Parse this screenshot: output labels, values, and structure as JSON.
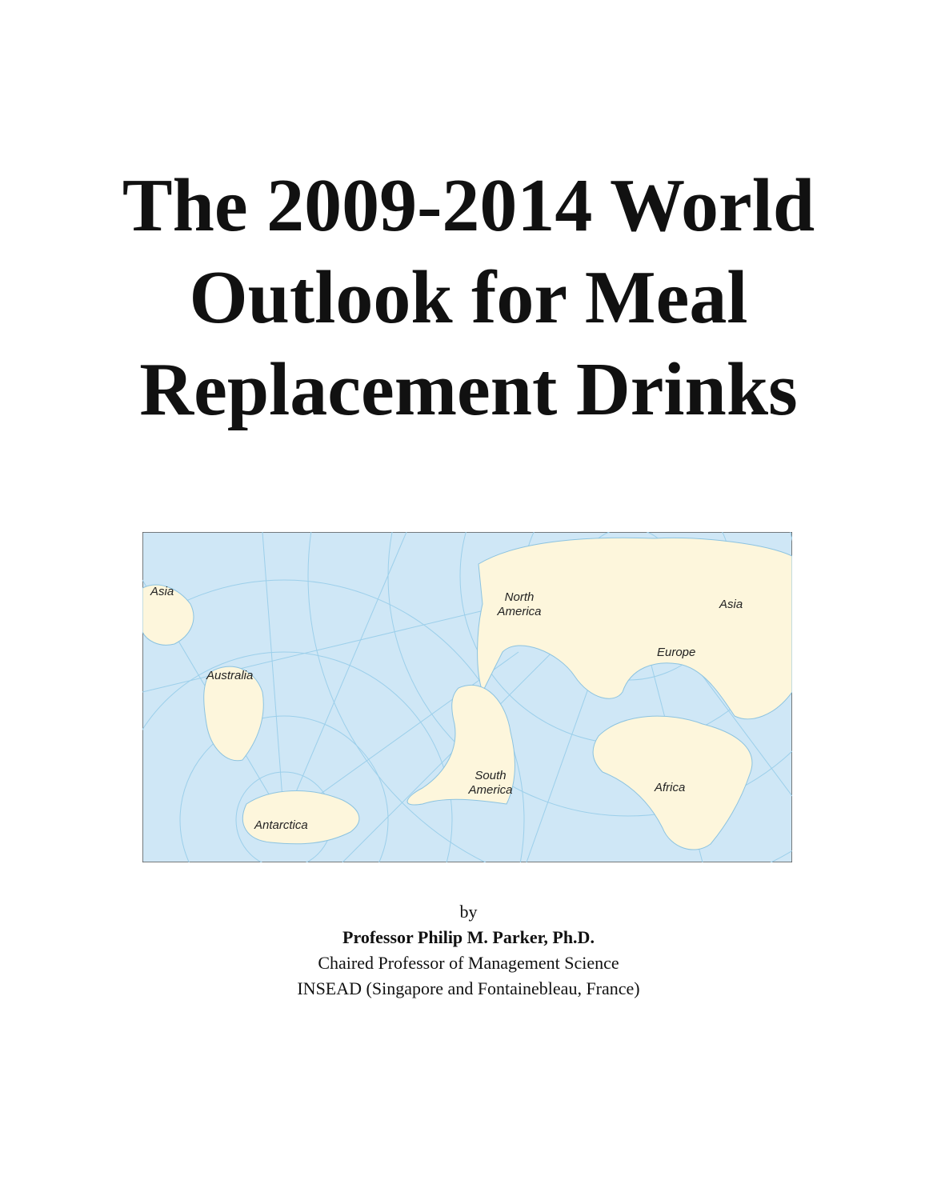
{
  "title": {
    "lines": [
      "The 2009-2014 World",
      "Outlook for Meal",
      "Replacement Drinks"
    ]
  },
  "map": {
    "labels": [
      "Asia",
      "Australia",
      "Antarctica",
      "North America",
      "South America",
      "Europe",
      "Asia",
      "Africa"
    ]
  },
  "byline": {
    "by": "by",
    "author": "Professor Philip M. Parker, Ph.D.",
    "position": "Chaired Professor of Management Science",
    "affiliation": "INSEAD (Singapore and Fontainebleau, France)"
  }
}
